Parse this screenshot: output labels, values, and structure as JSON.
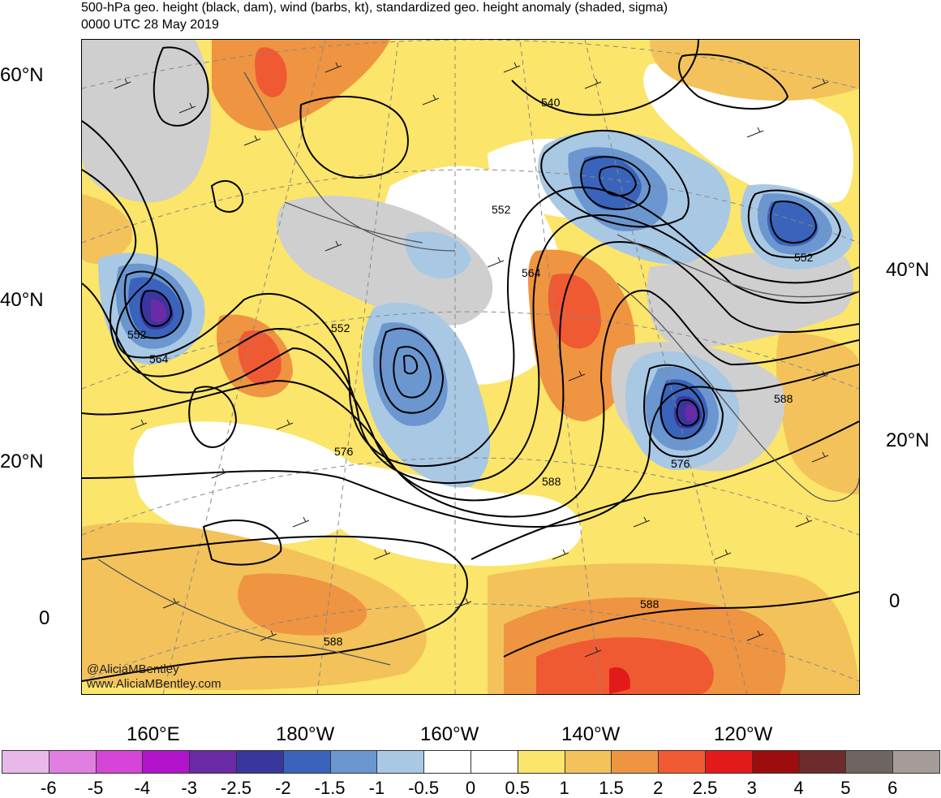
{
  "header": {
    "title": "500-hPa geo. height (black, dam), wind (barbs, kt), standardized geo. height anomaly (shaded, sigma)",
    "valid_time": "0000 UTC 28 May 2019"
  },
  "map": {
    "lat_labels_left": [
      "60°N",
      "40°N",
      "20°N",
      "0"
    ],
    "lat_labels_right": [
      "40°N",
      "20°N",
      "0"
    ],
    "lon_labels": [
      "160°E",
      "180°W",
      "160°W",
      "140°W",
      "120°W"
    ],
    "contour_labels": [
      "540",
      "552",
      "552",
      "552",
      "552",
      "564",
      "564",
      "576",
      "576",
      "588",
      "588",
      "588",
      "588"
    ],
    "credits": [
      "@AliciaMBentley",
      "www.AliciaMBentley.com"
    ]
  },
  "colorbar": {
    "labels": [
      "-6",
      "-5",
      "-4",
      "-3",
      "-2.5",
      "-2",
      "-1.5",
      "-1",
      "-0.5",
      "0",
      "0.5",
      "1",
      "1.5",
      "2",
      "2.5",
      "3",
      "4",
      "5",
      "6"
    ],
    "colors": [
      "#e8b9e8",
      "#e07fe0",
      "#d445d8",
      "#b214cc",
      "#6b2aa6",
      "#39369e",
      "#3a64bb",
      "#6b96cf",
      "#a8c8e4",
      "#ffffff",
      "#ffffff",
      "#fbe56a",
      "#f3c25b",
      "#ef9441",
      "#f05a33",
      "#e31a1a",
      "#9e0d0d",
      "#6e2b2b",
      "#6e6462",
      "#a59c9a"
    ]
  }
}
